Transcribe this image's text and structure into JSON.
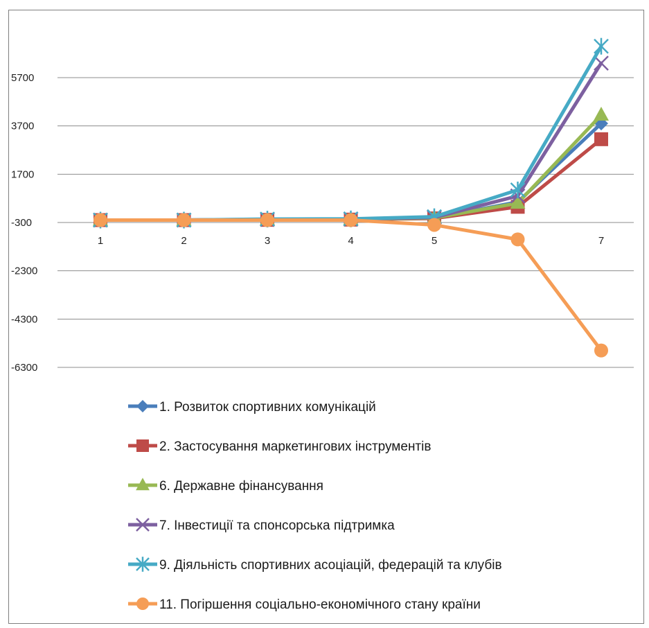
{
  "chart_data": {
    "type": "line",
    "title": "",
    "xlabel": "",
    "ylabel": "",
    "x": [
      "1",
      "2",
      "3",
      "4",
      "5",
      "6",
      "7"
    ],
    "yticks": [
      5700,
      3700,
      1700,
      -300,
      -2300,
      -4300,
      -6300
    ],
    "ytick_labels": [
      "5700",
      "3700",
      "1700",
      "-300",
      "-2300",
      "-4300",
      "-6300"
    ],
    "ylim": [
      -6300,
      7100
    ],
    "grid": true,
    "legend_position": "bottom",
    "series": [
      {
        "name": "1. Розвиток спортивних комунікацій",
        "color": "#4a7ebb",
        "marker": "diamond",
        "values": [
          -200,
          -200,
          -180,
          -170,
          -120,
          550,
          3800
        ]
      },
      {
        "name": "2. Застосування маркетингових інструментів",
        "color": "#be4b48",
        "marker": "square",
        "values": [
          -200,
          -200,
          -190,
          -180,
          -130,
          350,
          3150
        ]
      },
      {
        "name": "6. Державне фінансування",
        "color": "#98b954",
        "marker": "triangle",
        "values": [
          -200,
          -200,
          -180,
          -170,
          -110,
          500,
          4150
        ]
      },
      {
        "name": "7. Інвестиції  та спонсорська підтримка",
        "color": "#7d60a0",
        "marker": "x",
        "values": [
          -200,
          -200,
          -170,
          -160,
          -90,
          800,
          6300
        ]
      },
      {
        "name": "9. Діяльність спортивних асоціацій, федерацій та клубів",
        "color": "#46aac5",
        "marker": "asterisk",
        "values": [
          -200,
          -200,
          -160,
          -150,
          -60,
          1050,
          7000
        ]
      },
      {
        "name": "11. Погіршення соціально-економічного стану країни",
        "color": "#f59d56",
        "marker": "circle",
        "values": [
          -200,
          -200,
          -200,
          -200,
          -400,
          -1000,
          -5600
        ]
      }
    ]
  }
}
